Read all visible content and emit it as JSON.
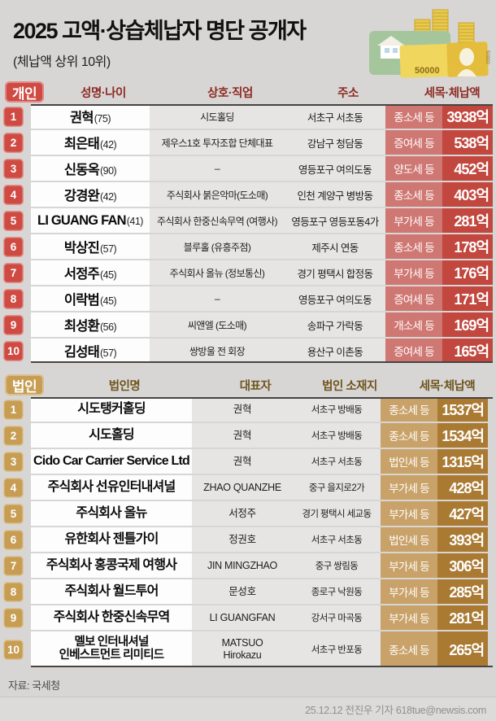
{
  "header": {
    "title": "2025 고액·상습체납자 명단 공개자",
    "subtitle": "(체납액 상위 10위)"
  },
  "illustration": {
    "banknote_label": "50000",
    "banknote_side_label": "50000"
  },
  "chart_data": [
    {
      "type": "table",
      "badge": "개인",
      "columns": [
        "성명·나이",
        "상호·직업",
        "주소",
        "세목·체납액"
      ],
      "rows": [
        {
          "rank": "1",
          "name": "권혁",
          "age": "(75)",
          "business": "시도홀딩",
          "address": "서초구 서초동",
          "tax": "종소세 등",
          "amount": "3938억"
        },
        {
          "rank": "2",
          "name": "최은태",
          "age": "(42)",
          "business": "제우스1호 투자조합 단체대표",
          "address": "강남구 청담동",
          "tax": "증여세 등",
          "amount": "538억"
        },
        {
          "rank": "3",
          "name": "신동옥",
          "age": "(90)",
          "business": "–",
          "address": "영등포구 여의도동",
          "tax": "양도세 등",
          "amount": "452억"
        },
        {
          "rank": "4",
          "name": "강경완",
          "age": "(42)",
          "business": "주식회사 붉은악마(도소매)",
          "address": "인천 계양구 병방동",
          "tax": "종소세 등",
          "amount": "403억"
        },
        {
          "rank": "5",
          "name": "LI GUANG FAN",
          "age": "(41)",
          "business": "주식회사 한중신속무역 (여행사)",
          "address": "영등포구 영등포동4가",
          "tax": "부가세 등",
          "amount": "281억"
        },
        {
          "rank": "6",
          "name": "박상진",
          "age": "(57)",
          "business": "블루홀 (유흥주점)",
          "address": "제주시 연동",
          "tax": "종소세 등",
          "amount": "178억"
        },
        {
          "rank": "7",
          "name": "서정주",
          "age": "(45)",
          "business": "주식회사 올뉴 (정보통신)",
          "address": "경기 평택시 합정동",
          "tax": "부가세 등",
          "amount": "176억"
        },
        {
          "rank": "8",
          "name": "이락범",
          "age": "(45)",
          "business": "–",
          "address": "영등포구 여의도동",
          "tax": "증여세 등",
          "amount": "171억"
        },
        {
          "rank": "9",
          "name": "최성환",
          "age": "(56)",
          "business": "씨앤엘 (도소매)",
          "address": "송파구 가락동",
          "tax": "개소세 등",
          "amount": "169억"
        },
        {
          "rank": "10",
          "name": "김성태",
          "age": "(57)",
          "business": "쌍방울 전 회장",
          "address": "용산구 이촌동",
          "tax": "증여세 등",
          "amount": "165억"
        }
      ]
    },
    {
      "type": "table",
      "badge": "법인",
      "columns": [
        "법인명",
        "대표자",
        "법인 소재지",
        "세목·체납액"
      ],
      "rows": [
        {
          "rank": "1",
          "name": "시도탱커홀딩",
          "ceo": "권혁",
          "address": "서초구 방배동",
          "tax": "종소세 등",
          "amount": "1537억"
        },
        {
          "rank": "2",
          "name": "시도홀딩",
          "ceo": "권혁",
          "address": "서초구 방배동",
          "tax": "종소세 등",
          "amount": "1534억"
        },
        {
          "rank": "3",
          "name": "Cido Car Carrier Service Ltd",
          "ceo": "권혁",
          "address": "서초구 서초동",
          "tax": "법인세 등",
          "amount": "1315억"
        },
        {
          "rank": "4",
          "name": "주식회사 선유인터내셔널",
          "ceo": "ZHAO QUANZHE",
          "address": "중구 을지로2가",
          "tax": "부가세 등",
          "amount": "428억"
        },
        {
          "rank": "5",
          "name": "주식회사 올뉴",
          "ceo": "서정주",
          "address": "경기 평택시 세교동",
          "tax": "부가세 등",
          "amount": "427억"
        },
        {
          "rank": "6",
          "name": "유한회사 젠틀가이",
          "ceo": "정권호",
          "address": "서초구 서초동",
          "tax": "법인세 등",
          "amount": "393억"
        },
        {
          "rank": "7",
          "name": "주식회사 홍콩국제 여행사",
          "ceo": "JIN MINGZHAO",
          "address": "중구 쌍림동",
          "tax": "부가세 등",
          "amount": "306억"
        },
        {
          "rank": "8",
          "name": "주식회사 월드투어",
          "ceo": "문성호",
          "address": "종로구 낙원동",
          "tax": "부가세 등",
          "amount": "285억"
        },
        {
          "rank": "9",
          "name": "주식회사 한중신속무역",
          "ceo": "LI GUANGFAN",
          "address": "강서구 마곡동",
          "tax": "부가세 등",
          "amount": "281억"
        },
        {
          "rank": "10",
          "name": "멜보 인터내셔널\n인베스트먼트 리미티드",
          "ceo": "MATSUO\nHirokazu",
          "address": "서초구 반포동",
          "tax": "종소세 등",
          "amount": "265억"
        }
      ]
    }
  ],
  "footer": {
    "source": "자료: 국세청",
    "credit": "25.12.12 전진우 기자 618tue@newsis.com"
  },
  "colors": {
    "individual_accent": "#cf4a42",
    "individual_tax_bg": "#cf7772",
    "individual_amount_bg": "#c2473f",
    "individual_header_text": "#8e2b24",
    "corporate_accent": "#c69d52",
    "corporate_tax_bg": "#c9a269",
    "corporate_amount_bg": "#aa7a33",
    "corporate_header_text": "#6f551e",
    "page_bg": "#d7d6d4"
  }
}
